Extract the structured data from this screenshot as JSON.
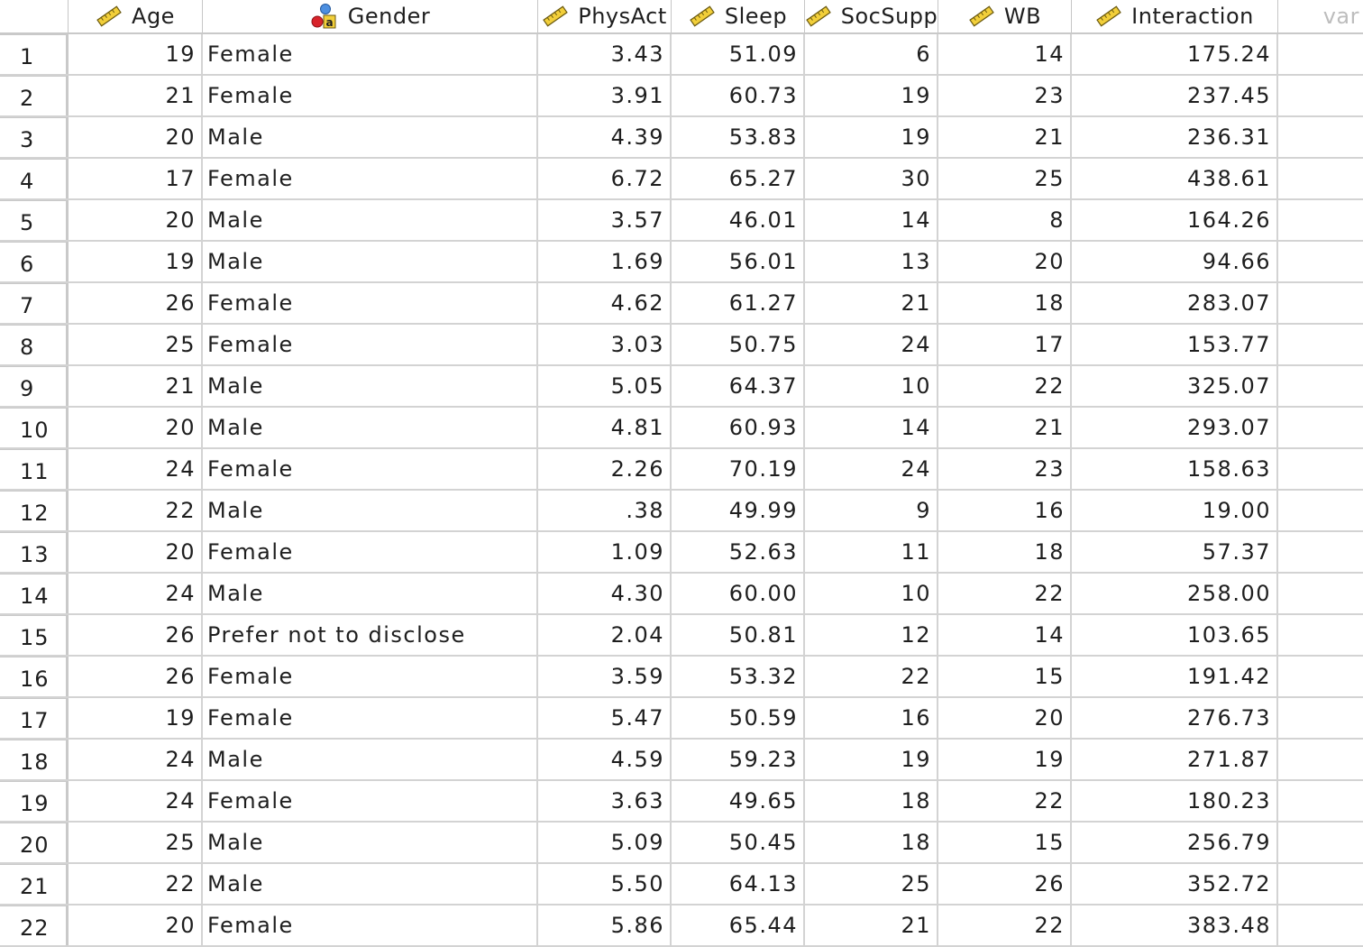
{
  "header": {
    "columns": [
      {
        "name": "Age",
        "icon": "scale-ruler-icon"
      },
      {
        "name": "Gender",
        "icon": "nominal-icon"
      },
      {
        "name": "PhysAct",
        "icon": "scale-ruler-icon"
      },
      {
        "name": "Sleep",
        "icon": "scale-ruler-icon"
      },
      {
        "name": "SocSupp",
        "icon": "scale-ruler-icon"
      },
      {
        "name": "WB",
        "icon": "scale-ruler-icon"
      },
      {
        "name": "Interaction",
        "icon": "scale-ruler-icon"
      }
    ],
    "placeholder": "var"
  },
  "rows": [
    {
      "n": "1",
      "age": "19",
      "gender": "Female",
      "physact": "3.43",
      "sleep": "51.09",
      "socsupp": "6",
      "wb": "14",
      "interaction": "175.24"
    },
    {
      "n": "2",
      "age": "21",
      "gender": "Female",
      "physact": "3.91",
      "sleep": "60.73",
      "socsupp": "19",
      "wb": "23",
      "interaction": "237.45"
    },
    {
      "n": "3",
      "age": "20",
      "gender": "Male",
      "physact": "4.39",
      "sleep": "53.83",
      "socsupp": "19",
      "wb": "21",
      "interaction": "236.31"
    },
    {
      "n": "4",
      "age": "17",
      "gender": "Female",
      "physact": "6.72",
      "sleep": "65.27",
      "socsupp": "30",
      "wb": "25",
      "interaction": "438.61"
    },
    {
      "n": "5",
      "age": "20",
      "gender": "Male",
      "physact": "3.57",
      "sleep": "46.01",
      "socsupp": "14",
      "wb": "8",
      "interaction": "164.26"
    },
    {
      "n": "6",
      "age": "19",
      "gender": "Male",
      "physact": "1.69",
      "sleep": "56.01",
      "socsupp": "13",
      "wb": "20",
      "interaction": "94.66"
    },
    {
      "n": "7",
      "age": "26",
      "gender": "Female",
      "physact": "4.62",
      "sleep": "61.27",
      "socsupp": "21",
      "wb": "18",
      "interaction": "283.07"
    },
    {
      "n": "8",
      "age": "25",
      "gender": "Female",
      "physact": "3.03",
      "sleep": "50.75",
      "socsupp": "24",
      "wb": "17",
      "interaction": "153.77"
    },
    {
      "n": "9",
      "age": "21",
      "gender": "Male",
      "physact": "5.05",
      "sleep": "64.37",
      "socsupp": "10",
      "wb": "22",
      "interaction": "325.07"
    },
    {
      "n": "10",
      "age": "20",
      "gender": "Male",
      "physact": "4.81",
      "sleep": "60.93",
      "socsupp": "14",
      "wb": "21",
      "interaction": "293.07"
    },
    {
      "n": "11",
      "age": "24",
      "gender": "Female",
      "physact": "2.26",
      "sleep": "70.19",
      "socsupp": "24",
      "wb": "23",
      "interaction": "158.63"
    },
    {
      "n": "12",
      "age": "22",
      "gender": "Male",
      "physact": ".38",
      "sleep": "49.99",
      "socsupp": "9",
      "wb": "16",
      "interaction": "19.00"
    },
    {
      "n": "13",
      "age": "20",
      "gender": "Female",
      "physact": "1.09",
      "sleep": "52.63",
      "socsupp": "11",
      "wb": "18",
      "interaction": "57.37"
    },
    {
      "n": "14",
      "age": "24",
      "gender": "Male",
      "physact": "4.30",
      "sleep": "60.00",
      "socsupp": "10",
      "wb": "22",
      "interaction": "258.00"
    },
    {
      "n": "15",
      "age": "26",
      "gender": "Prefer not to disclose",
      "physact": "2.04",
      "sleep": "50.81",
      "socsupp": "12",
      "wb": "14",
      "interaction": "103.65"
    },
    {
      "n": "16",
      "age": "26",
      "gender": "Female",
      "physact": "3.59",
      "sleep": "53.32",
      "socsupp": "22",
      "wb": "15",
      "interaction": "191.42"
    },
    {
      "n": "17",
      "age": "19",
      "gender": "Female",
      "physact": "5.47",
      "sleep": "50.59",
      "socsupp": "16",
      "wb": "20",
      "interaction": "276.73"
    },
    {
      "n": "18",
      "age": "24",
      "gender": "Male",
      "physact": "4.59",
      "sleep": "59.23",
      "socsupp": "19",
      "wb": "19",
      "interaction": "271.87"
    },
    {
      "n": "19",
      "age": "24",
      "gender": "Female",
      "physact": "3.63",
      "sleep": "49.65",
      "socsupp": "18",
      "wb": "22",
      "interaction": "180.23"
    },
    {
      "n": "20",
      "age": "25",
      "gender": "Male",
      "physact": "5.09",
      "sleep": "50.45",
      "socsupp": "18",
      "wb": "15",
      "interaction": "256.79"
    },
    {
      "n": "21",
      "age": "22",
      "gender": "Male",
      "physact": "5.50",
      "sleep": "64.13",
      "socsupp": "25",
      "wb": "26",
      "interaction": "352.72"
    },
    {
      "n": "22",
      "age": "20",
      "gender": "Female",
      "physact": "5.86",
      "sleep": "65.44",
      "socsupp": "21",
      "wb": "22",
      "interaction": "383.48"
    }
  ]
}
